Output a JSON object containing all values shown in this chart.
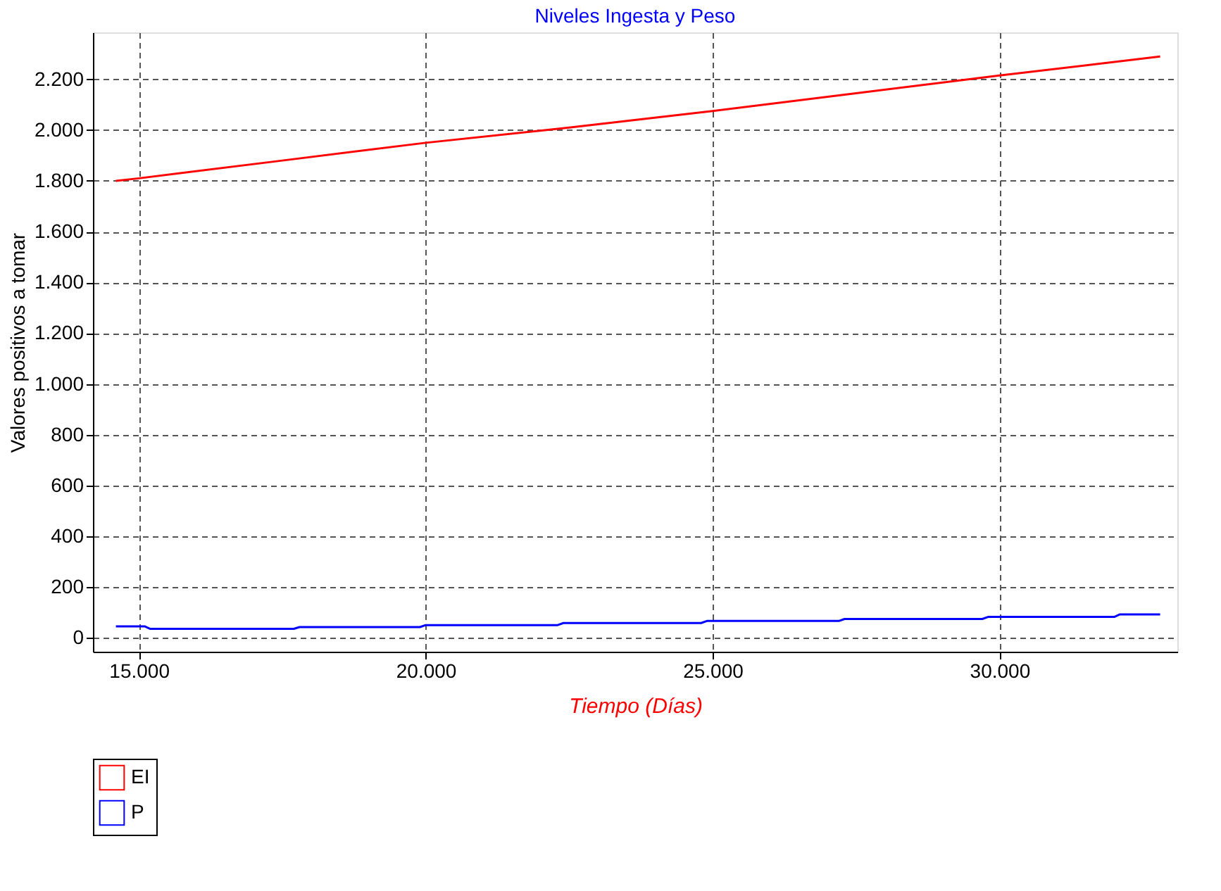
{
  "chart_data": {
    "type": "line",
    "title": "Niveles Ingesta y Peso",
    "xlabel": "Tiempo (Días)",
    "ylabel": "Valores positivos a tomar",
    "xlim": [
      14200,
      33100
    ],
    "ylim": [
      -55,
      2385
    ],
    "xticks": [
      {
        "value": 15000,
        "label": "15.000"
      },
      {
        "value": 20000,
        "label": "20.000"
      },
      {
        "value": 25000,
        "label": "25.000"
      },
      {
        "value": 30000,
        "label": "30.000"
      }
    ],
    "yticks": [
      0,
      200,
      400,
      600,
      800,
      {
        "value": 1000,
        "label": "1.000"
      },
      {
        "value": 1200,
        "label": "1.200"
      },
      {
        "value": 1400,
        "label": "1.400"
      },
      {
        "value": 1600,
        "label": "1.600"
      },
      {
        "value": 1800,
        "label": "1.800"
      },
      {
        "value": 2000,
        "label": "2.000"
      },
      {
        "value": 2200,
        "label": "2.200"
      }
    ],
    "grid": true,
    "legend": "bottom",
    "marker": "none",
    "line_style": "solid",
    "series": [
      {
        "name": "EI",
        "color": "#ff0000",
        "x": [
          14600,
          15000,
          17500,
          20000,
          22500,
          25000,
          27500,
          30000,
          32800
        ],
        "values": [
          1800,
          1810,
          1880,
          1950,
          2010,
          2075,
          2145,
          2215,
          2290
        ]
      },
      {
        "name": "P",
        "color": "#0000ff",
        "x": [
          14600,
          15100,
          15200,
          17700,
          17800,
          19900,
          20000,
          22300,
          22400,
          24800,
          24900,
          27200,
          27300,
          29700,
          29800,
          32000,
          32100,
          32800
        ],
        "values": [
          45,
          45,
          35,
          35,
          42,
          42,
          50,
          50,
          58,
          58,
          66,
          66,
          74,
          74,
          82,
          82,
          92,
          92
        ]
      }
    ]
  }
}
